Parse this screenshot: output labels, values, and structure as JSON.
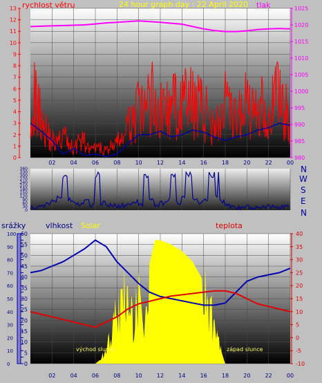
{
  "colors": {
    "page_bg": "#c0c0c0",
    "title": "#ffff00",
    "wind": "#ff0000",
    "wind_avg": "#0000a0",
    "pressure": "#ff00ff",
    "direction": "#000090",
    "humidity": "#0000b0",
    "temperature": "#e00000",
    "solar": "#ffff00",
    "precip_axis": "#0000b0",
    "compass": "#0000a0"
  },
  "chart_data": [
    {
      "type": "line",
      "panel": "wind-pressure",
      "title": "24 hour graph day : 22 April 2020",
      "x_ticks": [
        "02",
        "04",
        "06",
        "08",
        "10",
        "12",
        "14",
        "16",
        "18",
        "20",
        "22",
        "00"
      ],
      "series": [
        {
          "name": "rychlost větru",
          "axis": "left",
          "x": [
            0,
            0.5,
            1,
            1.5,
            2,
            2.5,
            3,
            3.5,
            4,
            4.5,
            5,
            5.5,
            6,
            6.5,
            7,
            7.5,
            8,
            8.5,
            9,
            9.5,
            10,
            10.5,
            11,
            11.5,
            12,
            12.5,
            13,
            13.5,
            14,
            14.5,
            15,
            15.5,
            16,
            16.5,
            17,
            17.5,
            18,
            18.5,
            19,
            19.5,
            20,
            20.5,
            21,
            21.5,
            22,
            22.5,
            23,
            23.5,
            24
          ],
          "values": [
            5.5,
            4.8,
            4.0,
            2.2,
            1.5,
            1.2,
            2.0,
            1.3,
            0.8,
            1.5,
            1.3,
            0.6,
            0.8,
            0.8,
            0.6,
            1.0,
            1.2,
            1.8,
            2.5,
            3.5,
            4.0,
            3.8,
            5.0,
            5.2,
            4.0,
            4.5,
            3.8,
            5.0,
            4.5,
            5.0,
            4.5,
            5.5,
            3.5,
            4.0,
            3.0,
            3.2,
            4.5,
            3.5,
            3.0,
            4.0,
            5.0,
            3.8,
            4.0,
            5.5,
            3.5,
            4.5,
            6.0,
            4.0,
            3.5
          ]
        },
        {
          "name": "wind average",
          "axis": "left",
          "x": [
            0,
            1,
            2,
            3,
            4,
            5,
            6,
            7,
            8,
            9,
            10,
            11,
            12,
            13,
            14,
            15,
            16,
            17,
            18,
            19,
            20,
            21,
            22,
            23,
            24
          ],
          "values": [
            3.0,
            2.3,
            1.5,
            0.3,
            0.8,
            0.2,
            0.3,
            0.1,
            0.3,
            1.2,
            2.0,
            2.0,
            2.3,
            1.8,
            2.0,
            2.4,
            2.2,
            1.8,
            1.5,
            1.8,
            2.0,
            2.4,
            2.6,
            3.0,
            2.8
          ]
        },
        {
          "name": "tlak",
          "axis": "right",
          "x": [
            0,
            1,
            2,
            3,
            4,
            5,
            6,
            7,
            8,
            9,
            10,
            11,
            12,
            13,
            14,
            15,
            16,
            17,
            18,
            19,
            20,
            21,
            22,
            23,
            24
          ],
          "values": [
            1019.5,
            1019.6,
            1019.7,
            1019.8,
            1019.9,
            1020.0,
            1020.3,
            1020.6,
            1020.8,
            1021.0,
            1021.2,
            1021.0,
            1020.8,
            1020.5,
            1020.2,
            1019.5,
            1018.8,
            1018.3,
            1018.0,
            1018.0,
            1018.2,
            1018.6,
            1018.8,
            1018.9,
            1018.8
          ]
        }
      ],
      "ylabel_left": "rychlost větru",
      "ylabel_right": "tlak",
      "ylim_left": [
        0,
        13
      ],
      "ylim_right": [
        980,
        1025
      ],
      "y_ticks_left": [
        0,
        1,
        2,
        3,
        4,
        5,
        6,
        7,
        8,
        9,
        10,
        11,
        12,
        13
      ],
      "y_ticks_right": [
        980,
        985,
        990,
        995,
        1000,
        1005,
        1010,
        1015,
        1020,
        1025
      ]
    },
    {
      "type": "line",
      "panel": "wind-direction",
      "x_ticks": [],
      "series": [
        {
          "name": "wind direction",
          "x": [
            0,
            0.5,
            1,
            1.5,
            2,
            2.5,
            3,
            3.5,
            4,
            4.5,
            5,
            5.5,
            6,
            6.5,
            7,
            7.5,
            8,
            8.5,
            9,
            9.5,
            10,
            10.5,
            11,
            11.5,
            12,
            12.5,
            13,
            13.5,
            14,
            14.5,
            15,
            15.5,
            16,
            16.5,
            17,
            17.5,
            18,
            18.5,
            19,
            19.5,
            20,
            20.5,
            21,
            21.5,
            22,
            22.5,
            23,
            23.5,
            24
          ],
          "values": [
            30,
            25,
            40,
            60,
            80,
            120,
            300,
            90,
            60,
            45,
            80,
            40,
            300,
            60,
            40,
            50,
            30,
            40,
            60,
            70,
            40,
            300,
            90,
            40,
            60,
            90,
            300,
            60,
            120,
            300,
            90,
            60,
            80,
            300,
            120,
            80,
            40,
            30,
            20,
            25,
            30,
            20,
            25,
            20,
            30,
            20,
            25,
            30,
            20
          ]
        }
      ],
      "ylim": [
        0,
        360
      ],
      "y_ticks": [
        0,
        30,
        60,
        90,
        120,
        150,
        180,
        210,
        240,
        270,
        300,
        330,
        360
      ],
      "compass": [
        "N",
        "W",
        "S",
        "E",
        "N"
      ]
    },
    {
      "type": "line",
      "panel": "humidity-temperature-solar",
      "x_ticks": [
        "02",
        "04",
        "06",
        "08",
        "10",
        "12",
        "14",
        "16",
        "18",
        "20",
        "22",
        "00"
      ],
      "series": [
        {
          "name": "vlhkost",
          "axis": "left",
          "x": [
            0,
            1,
            2,
            3,
            4,
            5,
            6,
            7,
            8,
            9,
            10,
            11,
            12,
            13,
            14,
            15,
            16,
            17,
            18,
            19,
            20,
            21,
            22,
            23,
            24
          ],
          "values": [
            42,
            43,
            45,
            47,
            50,
            53,
            57,
            54,
            47,
            42,
            37,
            33,
            31,
            30,
            29,
            28,
            27,
            27,
            28,
            33,
            38,
            40,
            41,
            42,
            44
          ]
        },
        {
          "name": "teplota",
          "axis": "right",
          "x": [
            0,
            1,
            2,
            3,
            4,
            5,
            6,
            7,
            8,
            9,
            10,
            11,
            12,
            13,
            14,
            15,
            16,
            17,
            18,
            19,
            20,
            21,
            22,
            23,
            24
          ],
          "values": [
            10,
            9,
            8,
            7,
            6,
            5,
            4,
            6,
            8,
            11,
            13,
            14,
            15,
            16,
            16.5,
            17,
            17.5,
            18,
            18,
            17,
            15,
            13,
            12,
            11,
            10
          ]
        },
        {
          "name": "Solar",
          "axis": "left",
          "x": [
            0,
            1,
            2,
            3,
            4,
            5,
            6,
            6.5,
            7,
            7.5,
            8,
            8.5,
            9,
            9.5,
            10,
            10.5,
            11,
            11.5,
            12,
            13,
            14,
            15,
            16,
            16.5,
            17,
            17.5,
            18,
            19,
            20,
            21,
            22,
            23,
            24
          ],
          "values": [
            0,
            0,
            0,
            0,
            0,
            0,
            0,
            2,
            8,
            14,
            28,
            34,
            38,
            20,
            42,
            12,
            46,
            57,
            57,
            55,
            52,
            47,
            38,
            30,
            20,
            8,
            0,
            0,
            0,
            0,
            0,
            0,
            0
          ]
        }
      ],
      "precip_label": "srážky",
      "humidity_label": "vlhkost",
      "solar_label": "Solar",
      "temperature_label": "teplota",
      "sunrise_label": "východ slunce",
      "sunset_label": "západ slunce",
      "ylim_precip": [
        0,
        100
      ],
      "y_ticks_precip": [
        0,
        10,
        20,
        30,
        40,
        50,
        60,
        70,
        80,
        90,
        100
      ],
      "ylim_left": [
        0,
        60
      ],
      "y_ticks_left": [
        0,
        5,
        10,
        15,
        20,
        25,
        30,
        35,
        40,
        45,
        50,
        55,
        60
      ],
      "ylim_right": [
        -10,
        40
      ],
      "y_ticks_right": [
        -10,
        -5,
        0,
        5,
        10,
        15,
        20,
        25,
        30,
        35,
        40
      ]
    }
  ]
}
